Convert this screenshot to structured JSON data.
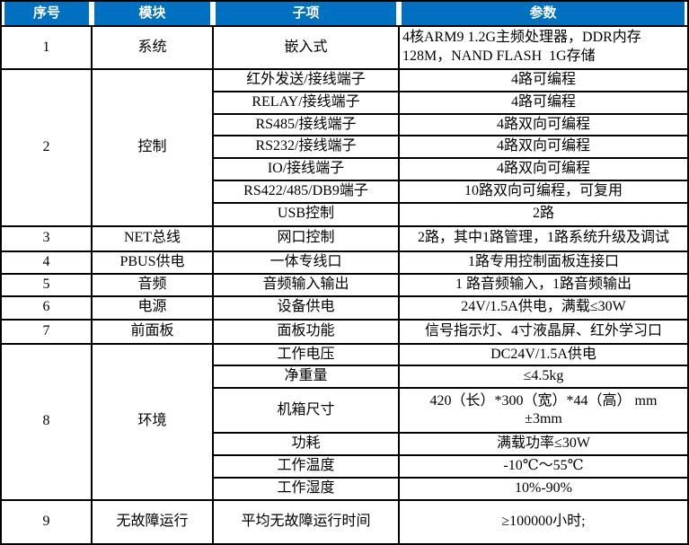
{
  "colors": {
    "header_bg": "#0070C0",
    "header_text": "#FFFFFF",
    "border": "#000000",
    "body_bg": "#FFFFFF"
  },
  "table": {
    "columns": [
      "序号",
      "模块",
      "子项",
      "参数"
    ],
    "rows": [
      {
        "no": "1",
        "module": "系统",
        "items": [
          {
            "sub": "嵌入式",
            "param": "4核ARM9 1.2G主频处理器，DDR内存\n128M，NAND FLASH  1G存储"
          }
        ]
      },
      {
        "no": "2",
        "module": "控制",
        "items": [
          {
            "sub": "红外发送/接线端子",
            "param": "4路可编程"
          },
          {
            "sub": "RELAY/接线端子",
            "param": "4路可编程"
          },
          {
            "sub": "RS485/接线端子",
            "param": "4路双向可编程"
          },
          {
            "sub": "RS232/接线端子",
            "param": "4路双向可编程"
          },
          {
            "sub": "IO/接线端子",
            "param": "4路双向可编程"
          },
          {
            "sub": "RS422/485/DB9端子",
            "param": "10路双向可编程，可复用"
          },
          {
            "sub": "USB控制",
            "param": "2路"
          }
        ]
      },
      {
        "no": "3",
        "module": "NET总线",
        "items": [
          {
            "sub": "网口控制",
            "param": "2路，其中1路管理，1路系统升级及调试"
          }
        ]
      },
      {
        "no": "4",
        "module": "PBUS供电",
        "items": [
          {
            "sub": "一体专线口",
            "param": "1路专用控制面板连接口"
          }
        ]
      },
      {
        "no": "5",
        "module": "音频",
        "items": [
          {
            "sub": "音频输入输出",
            "param": "1 路音频输入，1路音频输出"
          }
        ]
      },
      {
        "no": "6",
        "module": "电源",
        "items": [
          {
            "sub": "设备供电",
            "param": "24V/1.5A供电，满载≤30W"
          }
        ]
      },
      {
        "no": "7",
        "module": "前面板",
        "items": [
          {
            "sub": "面板功能",
            "param": "信号指示灯、4寸液晶屏、红外学习口"
          }
        ]
      },
      {
        "no": "8",
        "module": "环境",
        "items": [
          {
            "sub": "工作电压",
            "param": "DC24V/1.5A供电"
          },
          {
            "sub": "净重量",
            "param": "≤4.5kg"
          },
          {
            "sub": "机箱尺寸",
            "param": "420（长）*300（宽）*44（高） mm\n±3mm"
          },
          {
            "sub": "功耗",
            "param": "满载功率≤30W"
          },
          {
            "sub": "工作温度",
            "param": "-10℃～55℃"
          },
          {
            "sub": "工作湿度",
            "param": "10%-90%"
          }
        ]
      },
      {
        "no": "9",
        "module": "无故障运行",
        "items": [
          {
            "sub": "平均无故障运行时间",
            "param": "≥100000小时;"
          }
        ]
      }
    ]
  }
}
